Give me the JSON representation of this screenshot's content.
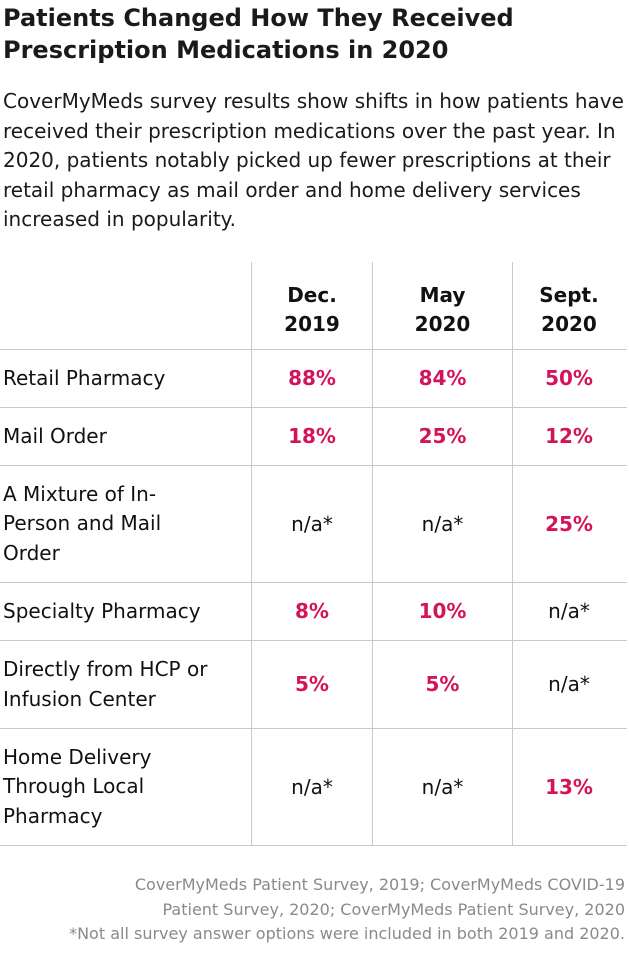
{
  "title": {
    "line1": "Patients Changed How They Received",
    "line2": "Prescription Medications in 2020"
  },
  "intro": "CoverMyMeds survey results show shifts in how patients have received their prescription medications over the past year. In 2020, patients notably picked up fewer prescriptions at their retail pharmacy as mail order and home delivery services increased in popularity.",
  "colors": {
    "accent": "#d4145a",
    "text": "#111111",
    "rule": "#c9c9c9",
    "footnote": "#8a8a8a"
  },
  "chart_data": {
    "type": "table",
    "columns": [
      {
        "line1": "Dec.",
        "line2": "2019"
      },
      {
        "line1": "May",
        "line2": "2020"
      },
      {
        "line1": "Sept.",
        "line2": "2020"
      }
    ],
    "rows": [
      {
        "label": "Retail Pharmacy",
        "values": [
          "88%",
          "84%",
          "50%"
        ]
      },
      {
        "label": "Mail Order",
        "values": [
          "18%",
          "25%",
          "12%"
        ]
      },
      {
        "label": "A Mixture of In-Person and Mail Order",
        "values": [
          "n/a*",
          "n/a*",
          "25%"
        ]
      },
      {
        "label": "Specialty Pharmacy",
        "values": [
          "8%",
          "10%",
          "n/a*"
        ]
      },
      {
        "label": "Directly from HCP or Infusion Center",
        "values": [
          "5%",
          "5%",
          "n/a*"
        ]
      },
      {
        "label": "Home Delivery Through Local Pharmacy",
        "values": [
          "n/a*",
          "n/a*",
          "13%"
        ]
      }
    ]
  },
  "footer": {
    "line1": "CoverMyMeds Patient Survey, 2019; CoverMyMeds COVID-19",
    "line2": "Patient Survey, 2020; CoverMyMeds Patient Survey, 2020",
    "line3": "*Not all survey answer options were included in both 2019 and 2020."
  }
}
